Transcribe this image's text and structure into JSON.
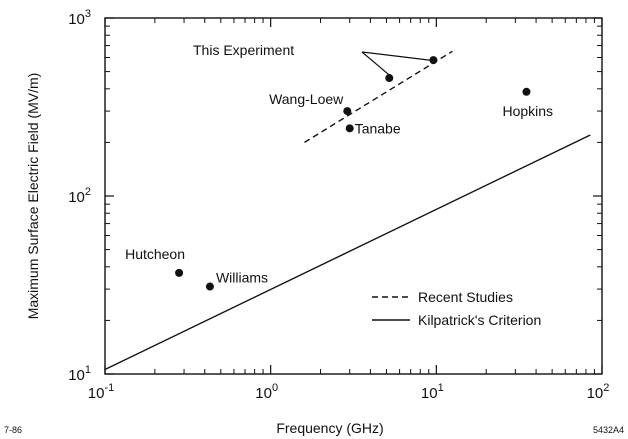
{
  "chart_data": {
    "type": "scatter",
    "title": "",
    "xlabel": "Frequency (GHz)",
    "ylabel": "Maximum Surface Electric Field (MV/m)",
    "x_scale": "log",
    "y_scale": "log",
    "xlim": [
      0.1,
      100
    ],
    "ylim": [
      10,
      1000
    ],
    "x_ticks": [
      {
        "base": "10",
        "exp": "-1",
        "value": 0.1
      },
      {
        "base": "10",
        "exp": "0",
        "value": 1
      },
      {
        "base": "10",
        "exp": "1",
        "value": 10
      },
      {
        "base": "10",
        "exp": "2",
        "value": 100
      }
    ],
    "y_ticks": [
      {
        "base": "10",
        "exp": "1",
        "value": 10
      },
      {
        "base": "10",
        "exp": "2",
        "value": 100
      },
      {
        "base": "10",
        "exp": "3",
        "value": 1000
      }
    ],
    "grid": false,
    "points": [
      {
        "label": "Hutcheon",
        "x": 0.28,
        "y": 37
      },
      {
        "label": "Williams",
        "x": 0.43,
        "y": 31
      },
      {
        "label": "Wang-Loew",
        "x": 2.9,
        "y": 300
      },
      {
        "label": "Tanabe",
        "x": 3.0,
        "y": 240
      },
      {
        "label": "Hopkins",
        "x": 35,
        "y": 385
      },
      {
        "label": "",
        "x": 5.2,
        "y": 460
      },
      {
        "label": "",
        "x": 9.6,
        "y": 580
      }
    ],
    "annotations": [
      {
        "text": "This Experiment",
        "target_points": [
          5,
          6
        ]
      }
    ],
    "series": [
      {
        "name": "Recent Studies",
        "style": "dashed",
        "x": [
          1.6,
          12.5
        ],
        "y": [
          200,
          650
        ]
      },
      {
        "name": "Kilpatrick's Criterion",
        "style": "solid",
        "x": [
          0.1,
          85
        ],
        "y": [
          10.6,
          220
        ]
      }
    ],
    "legend": {
      "position": "lower-right"
    },
    "footer_left": "7-86",
    "footer_right": "5432A4"
  }
}
